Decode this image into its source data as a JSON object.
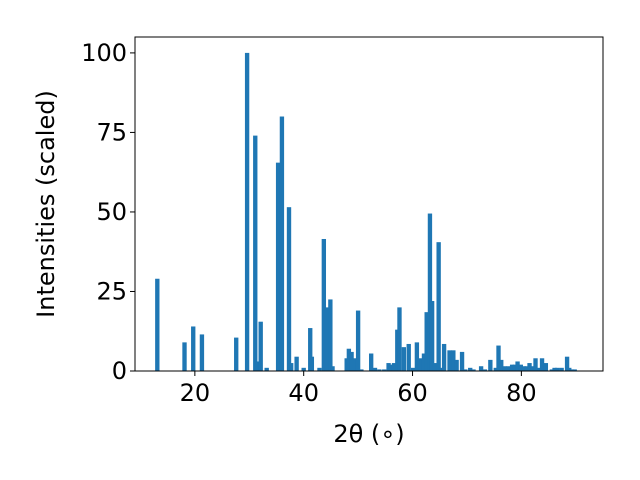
{
  "chart_data": {
    "type": "bar",
    "title": "",
    "xlabel": "2θ (∘)",
    "ylabel": "Intensities (scaled)",
    "xlim": [
      9,
      95
    ],
    "ylim": [
      0,
      105
    ],
    "xticks": [
      20,
      40,
      60,
      80
    ],
    "yticks": [
      0,
      25,
      50,
      75,
      100
    ],
    "bar_width": 0.8,
    "color": "#1f77b4",
    "grid": false,
    "legend": "none",
    "series": [
      {
        "x": [
          13.1,
          18.1,
          19.7,
          21.3,
          27.6,
          29.6,
          31.1,
          31.5,
          32.1,
          33.2,
          35.3,
          36.0,
          37.3,
          37.7,
          38.7,
          40.0,
          41.2,
          41.5,
          42.9,
          43.7,
          44.3,
          44.9,
          45.3,
          47.9,
          48.3,
          48.8,
          49.3,
          50.0,
          50.6,
          52.4,
          53.1,
          53.9,
          54.8,
          55.6,
          56.0,
          56.6,
          57.2,
          57.6,
          58.4,
          59.3,
          60.1,
          60.8,
          61.4,
          62.1,
          62.6,
          63.2,
          63.6,
          64.1,
          64.8,
          65.3,
          65.8,
          66.8,
          67.5,
          68.1,
          69.1,
          69.7,
          70.6,
          71.2,
          72.6,
          73.3,
          74.3,
          75.3,
          75.8,
          76.3,
          76.9,
          77.6,
          78.3,
          78.8,
          79.3,
          79.9,
          80.4,
          81.0,
          81.5,
          82.1,
          82.6,
          83.3,
          83.8,
          84.5,
          85.6,
          86.1,
          86.6,
          87.4,
          88.4,
          88.8,
          89.3,
          89.8
        ],
        "values": [
          29,
          9,
          14,
          11.5,
          10.5,
          100,
          74,
          3,
          15.5,
          1,
          65.5,
          80,
          51.5,
          2.5,
          4.5,
          1,
          13.5,
          4.5,
          1,
          41.5,
          20,
          22.5,
          1.5,
          4,
          7,
          6,
          4,
          19,
          0.5,
          5.5,
          1,
          0.5,
          0.5,
          2.5,
          2,
          2.5,
          13,
          20,
          7.5,
          8.5,
          1,
          9,
          4,
          5.5,
          18.5,
          49.5,
          22,
          2.5,
          40.5,
          1,
          8.5,
          6.5,
          6.5,
          3.5,
          6,
          0.5,
          1,
          0.5,
          1.5,
          0.5,
          3.5,
          1,
          8,
          3.5,
          1.5,
          1.5,
          2,
          2,
          3,
          2,
          1.5,
          1.5,
          2.5,
          1.5,
          4,
          1,
          4,
          2.5,
          0.5,
          1,
          1,
          1,
          4.5,
          1,
          0.5,
          0.5
        ]
      }
    ]
  }
}
